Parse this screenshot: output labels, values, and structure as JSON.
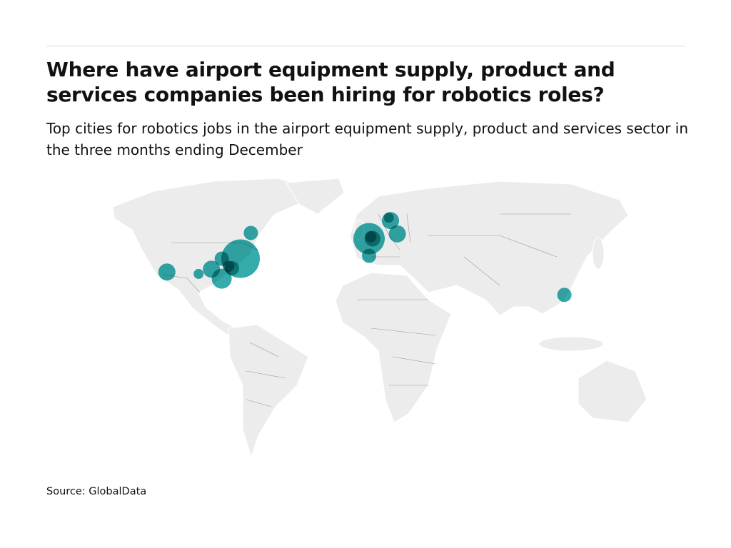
{
  "header": {
    "title": "Where have airport equipment supply, product and services companies been hiring for robotics roles?",
    "subtitle": "Top cities for robotics jobs in the airport equipment supply, product and services sector in the three months ending December"
  },
  "footer": {
    "source": "Source: GlobalData"
  },
  "colors": {
    "bubble": "#109e9e",
    "land": "#ececec",
    "border": "#9a9a9a"
  },
  "chart_data": {
    "type": "bubble-map",
    "title": "Where have airport equipment supply, product and services companies been hiring for robotics roles?",
    "legend": "none",
    "points": [
      {
        "lon": -118,
        "lat": 34,
        "size": 12
      },
      {
        "lon": -99.5,
        "lat": 33,
        "size": 7
      },
      {
        "lon": -92,
        "lat": 35.5,
        "size": 12
      },
      {
        "lon": -86,
        "lat": 30.5,
        "size": 14
      },
      {
        "lon": -86,
        "lat": 41,
        "size": 10
      },
      {
        "lon": -75,
        "lat": 41,
        "size": 27
      },
      {
        "lon": -80,
        "lat": 36,
        "size": 10
      },
      {
        "lon": -82,
        "lat": 37,
        "size": 8
      },
      {
        "lon": -69,
        "lat": 54.5,
        "size": 10
      },
      {
        "lon": 0,
        "lat": 51.5,
        "size": 22
      },
      {
        "lon": 2,
        "lat": 51.5,
        "size": 11
      },
      {
        "lon": 1,
        "lat": 52.5,
        "size": 8
      },
      {
        "lon": 12.5,
        "lat": 61,
        "size": 12
      },
      {
        "lon": 11.5,
        "lat": 62.5,
        "size": 7
      },
      {
        "lon": 16.5,
        "lat": 54,
        "size": 12
      },
      {
        "lon": 0,
        "lat": 42.5,
        "size": 10
      },
      {
        "lon": 114,
        "lat": 22,
        "size": 10
      }
    ]
  }
}
